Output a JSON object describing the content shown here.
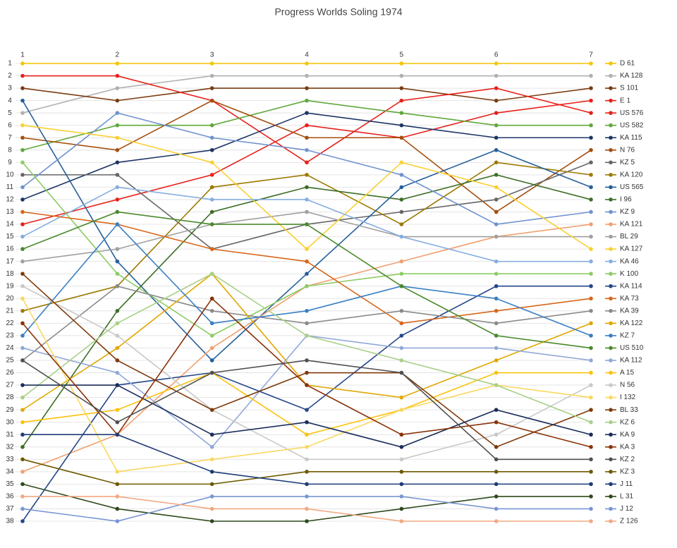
{
  "chart_data": {
    "type": "line",
    "title": "Progress Worlds Soling 1974",
    "categories": [
      "1",
      "2",
      "3",
      "4",
      "5",
      "6",
      "7"
    ],
    "ylim": [
      1,
      38
    ],
    "y_inverted": true,
    "grid": true,
    "legend": "right",
    "yticks": [
      1,
      2,
      3,
      4,
      5,
      6,
      7,
      8,
      9,
      10,
      11,
      12,
      13,
      14,
      15,
      16,
      17,
      18,
      19,
      20,
      21,
      22,
      23,
      24,
      25,
      26,
      27,
      28,
      29,
      30,
      31,
      32,
      33,
      34,
      35,
      36,
      37,
      38
    ],
    "series": [
      {
        "name": "D 61",
        "color": "#f5c400",
        "values": [
          1,
          1,
          1,
          1,
          1,
          1,
          1
        ]
      },
      {
        "name": "KA 128",
        "color": "#b0b0b0",
        "values": [
          5,
          3,
          2,
          2,
          2,
          2,
          2
        ]
      },
      {
        "name": "S 101",
        "color": "#7a3b10",
        "values": [
          3,
          4,
          3,
          3,
          3,
          4,
          3
        ]
      },
      {
        "name": "E 1",
        "color": "#e8201a",
        "values": [
          14,
          12,
          10,
          6,
          7,
          5,
          4
        ]
      },
      {
        "name": "US 576",
        "color": "#e8201a",
        "values": [
          2,
          2,
          4,
          9,
          4,
          3,
          5
        ]
      },
      {
        "name": "US 582",
        "color": "#5fa83a",
        "values": [
          8,
          6,
          6,
          4,
          5,
          6,
          6
        ]
      },
      {
        "name": "KA 115",
        "color": "#1e3566",
        "values": [
          12,
          9,
          8,
          5,
          6,
          7,
          7
        ]
      },
      {
        "name": "N 76",
        "color": "#a44e0e",
        "values": [
          7,
          8,
          4,
          7,
          7,
          13,
          8
        ]
      },
      {
        "name": "KZ 5",
        "color": "#666666",
        "values": [
          10,
          10,
          16,
          14,
          13,
          12,
          9
        ]
      },
      {
        "name": "KA 120",
        "color": "#9c7a00",
        "values": [
          21,
          19,
          11,
          10,
          14,
          9,
          10
        ]
      },
      {
        "name": "US 565",
        "color": "#245f9a",
        "values": [
          4,
          17,
          25,
          18,
          11,
          8,
          11
        ]
      },
      {
        "name": "I 96",
        "color": "#3e6e26",
        "values": [
          32,
          21,
          13,
          11,
          12,
          10,
          12
        ]
      },
      {
        "name": "KZ 9",
        "color": "#6f93d0",
        "values": [
          11,
          5,
          7,
          8,
          10,
          14,
          13
        ]
      },
      {
        "name": "KA 121",
        "color": "#f0a070",
        "values": [
          34,
          31,
          24,
          19,
          17,
          15,
          14
        ]
      },
      {
        "name": "BL 29",
        "color": "#a0a0a0",
        "values": [
          17,
          16,
          14,
          13,
          15,
          15,
          15
        ]
      },
      {
        "name": "KA 127",
        "color": "#f9d030",
        "values": [
          6,
          7,
          9,
          16,
          9,
          11,
          16
        ]
      },
      {
        "name": "KA 46",
        "color": "#86aee0",
        "values": [
          15,
          11,
          12,
          12,
          15,
          17,
          17
        ]
      },
      {
        "name": "K 100",
        "color": "#8ccc64",
        "values": [
          9,
          18,
          23,
          19,
          18,
          18,
          18
        ]
      },
      {
        "name": "KA 114",
        "color": "#24478a",
        "values": [
          38,
          27,
          26,
          29,
          23,
          19,
          19
        ]
      },
      {
        "name": "KA 73",
        "color": "#d8661a",
        "values": [
          13,
          14,
          16,
          17,
          22,
          21,
          20
        ]
      },
      {
        "name": "KA 39",
        "color": "#8a8a8a",
        "values": [
          25,
          19,
          21,
          22,
          21,
          22,
          21
        ]
      },
      {
        "name": "KA 122",
        "color": "#e0a800",
        "values": [
          29,
          24,
          18,
          27,
          28,
          25,
          22
        ]
      },
      {
        "name": "KZ 7",
        "color": "#3a7fc4",
        "values": [
          23,
          14,
          22,
          21,
          19,
          20,
          23
        ]
      },
      {
        "name": "US 510",
        "color": "#4a8a2c",
        "values": [
          16,
          13,
          14,
          14,
          19,
          23,
          24
        ]
      },
      {
        "name": "KA 112",
        "color": "#90a8d8",
        "values": [
          24,
          26,
          32,
          23,
          24,
          24,
          25
        ]
      },
      {
        "name": "A 15",
        "color": "#fcc20c",
        "values": [
          30,
          29,
          26,
          31,
          29,
          26,
          26
        ]
      },
      {
        "name": "N 56",
        "color": "#c8c8c8",
        "values": [
          19,
          23,
          29,
          33,
          33,
          31,
          27
        ]
      },
      {
        "name": "I 132",
        "color": "#fad860",
        "values": [
          20,
          34,
          33,
          32,
          29,
          27,
          28
        ]
      },
      {
        "name": "BL 33",
        "color": "#7e3a0a",
        "values": [
          18,
          25,
          29,
          26,
          26,
          32,
          29
        ]
      },
      {
        "name": "KZ 6",
        "color": "#a8d088",
        "values": [
          28,
          22,
          18,
          23,
          25,
          27,
          30
        ]
      },
      {
        "name": "KA 9",
        "color": "#1a2c5a",
        "values": [
          27,
          27,
          31,
          30,
          32,
          29,
          31
        ]
      },
      {
        "name": "KA 3",
        "color": "#8a3208",
        "values": [
          22,
          31,
          20,
          27,
          31,
          30,
          32
        ]
      },
      {
        "name": "KZ 2",
        "color": "#505050",
        "values": [
          25,
          30,
          26,
          25,
          26,
          33,
          33
        ]
      },
      {
        "name": "KZ 3",
        "color": "#6e5a00",
        "values": [
          33,
          35,
          35,
          34,
          34,
          34,
          34
        ]
      },
      {
        "name": "J 11",
        "color": "#1e3c78",
        "values": [
          31,
          31,
          34,
          35,
          35,
          35,
          35
        ]
      },
      {
        "name": "L 31",
        "color": "#2e4a1e",
        "values": [
          35,
          37,
          38,
          38,
          37,
          36,
          36
        ]
      },
      {
        "name": "J 12",
        "color": "#7896d2",
        "values": [
          37,
          38,
          36,
          36,
          36,
          37,
          37
        ]
      },
      {
        "name": "Z 126",
        "color": "#f2a880",
        "values": [
          36,
          36,
          37,
          37,
          38,
          38,
          38
        ]
      }
    ]
  }
}
